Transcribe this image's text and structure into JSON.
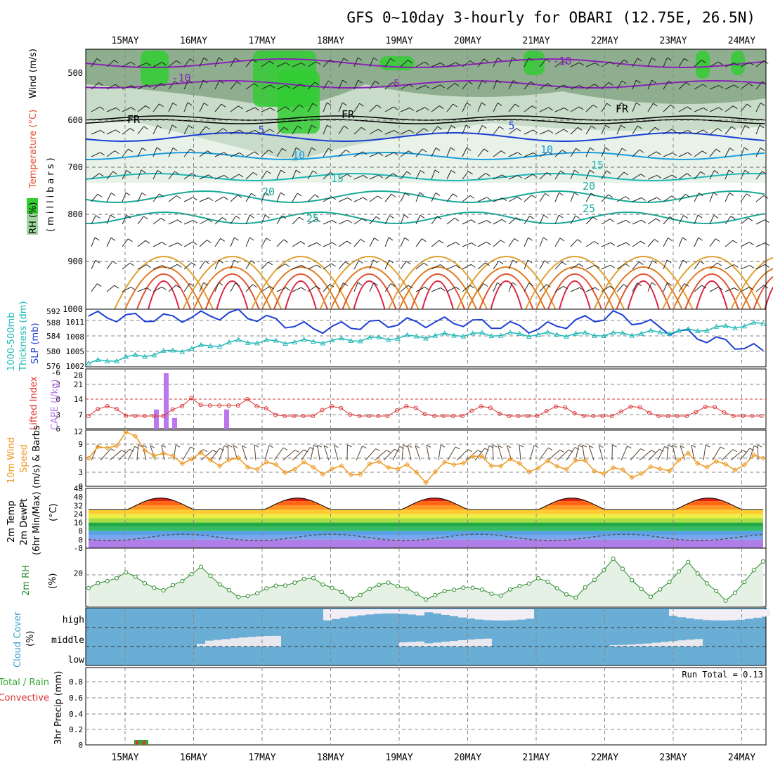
{
  "title": "GFS 0~10day 3-hourly for OBARI (12.75E, 26.5N)",
  "dates": [
    "15MAY",
    "16MAY",
    "17MAY",
    "18MAY",
    "19MAY",
    "20MAY",
    "21MAY",
    "22MAY",
    "23MAY",
    "24MAY"
  ],
  "run_total": "Run Total = 0.13",
  "colors": {
    "green_rh": "#33cc33",
    "slp_line": "#1a3fd6",
    "thickness_line": "#20b8b8",
    "lifted_index": "#dd3333",
    "cape_bar": "#bb77ee",
    "wind_speed": "#ee9922",
    "rh2m": "#2a8a2a",
    "cloud_blue": "#6aaed6"
  },
  "panels": {
    "upper": {
      "ylabel_rh": "RH (%)",
      "ylabel_temp": "Temperature (°C)",
      "ylabel_wind": "Wind (m/s)",
      "ylabel_mb": "(millibars)",
      "levels": [
        "500",
        "600",
        "700",
        "800",
        "900",
        "1000"
      ],
      "contour_labels": [
        "-10",
        "-10",
        "-5",
        "FR",
        "FR",
        "FR",
        "5",
        "5",
        "10",
        "10",
        "15",
        "15",
        "20",
        "20",
        "25",
        "25"
      ]
    },
    "slp": {
      "ylabel_a": "1000-500mb",
      "ylabel_b": "Thickness (dm)",
      "ylabel_c": "SLP (mb)",
      "left_ticks": [
        "592",
        "588",
        "584",
        "580",
        "576"
      ],
      "right_ticks": [
        "1011",
        "1008",
        "1005",
        "1002"
      ]
    },
    "cape": {
      "ylabel_a": "Lifted Index",
      "ylabel_b": "CAPE (J/kg)",
      "left_ticks": [
        "-6",
        "-3",
        "0",
        "3",
        "6"
      ],
      "right_ticks": [
        "28",
        "21",
        "14",
        "7"
      ]
    },
    "wind10m": {
      "ylabel_a": "10m Wind",
      "ylabel_b": "Speed",
      "ylabel_c": "(m/s) & Barbs",
      "ticks": [
        "12",
        "9",
        "6",
        "3",
        "0"
      ]
    },
    "temp2m": {
      "ylabel_a": "2m Temp",
      "ylabel_b": "2m DewPt",
      "ylabel_c": "(6hr Min/Max)",
      "ylabel_d": "(°C)",
      "ticks": [
        "48",
        "40",
        "32",
        "24",
        "16",
        "8",
        "0",
        "-8"
      ]
    },
    "rh2m": {
      "ylabel_a": "2m RH",
      "ylabel_b": "(%)",
      "ticks": [
        "20"
      ]
    },
    "cloud": {
      "ylabel_a": "Cloud Cover",
      "ylabel_b": "(%)",
      "rows": [
        "high",
        "middle",
        "low"
      ]
    },
    "precip": {
      "ylabel_a": "Total / Rain",
      "ylabel_b": "Convective",
      "ylabel_c": "3hr Precip (mm)",
      "ticks": [
        "0.8",
        "0.6",
        "0.4",
        "0.2",
        "0"
      ]
    }
  },
  "chart_data": [
    {
      "type": "line",
      "name_panel": "SLP and 1000-500mb thickness",
      "x": [
        "15MAY",
        "16MAY",
        "17MAY",
        "18MAY",
        "19MAY",
        "20MAY",
        "21MAY",
        "22MAY",
        "23MAY",
        "24MAY"
      ],
      "series": [
        {
          "name": "SLP (mb)",
          "values": [
            1010.8,
            1010.4,
            1011.2,
            1008.6,
            1009.6,
            1009.8,
            1008.6,
            1011.0,
            1007.6,
            1004.8
          ]
        },
        {
          "name": "1000-500mb Thickness (dm)",
          "values": [
            577,
            580,
            583,
            583,
            584,
            585,
            585,
            585,
            586,
            588
          ]
        }
      ],
      "ylim_slp": [
        1002,
        1012
      ],
      "ylim_thickness": [
        576,
        592
      ]
    },
    {
      "type": "bar",
      "name_panel": "CAPE",
      "x": [
        "15.8MAY",
        "15.9MAY",
        "16.0MAY",
        "16.9MAY"
      ],
      "values": [
        9,
        26,
        5,
        9
      ],
      "ylim": [
        0,
        28
      ]
    },
    {
      "type": "line",
      "name_panel": "10m wind speed",
      "x": [
        "15MAY",
        "15.5MAY",
        "16MAY",
        "16.5MAY",
        "17MAY",
        "17.5MAY",
        "18MAY",
        "18.5MAY",
        "19MAY",
        "19.5MAY",
        "20MAY",
        "20.5MAY",
        "21MAY",
        "21.5MAY",
        "22MAY",
        "22.5MAY",
        "23MAY",
        "23.5MAY",
        "24MAY"
      ],
      "values": [
        6,
        11,
        6,
        6,
        5,
        4,
        4,
        3,
        5,
        2,
        6,
        5,
        4,
        5,
        3,
        3,
        6,
        4,
        6
      ],
      "ylim": [
        0,
        12
      ]
    },
    {
      "type": "area",
      "name_panel": "2m RH",
      "x": [
        "15MAY",
        "15.5MAY",
        "16MAY",
        "16.5MAY",
        "17MAY",
        "17.5MAY",
        "18MAY",
        "18.5MAY",
        "19MAY",
        "19.5MAY",
        "20MAY",
        "20.5MAY",
        "21MAY",
        "21.5MAY",
        "22MAY",
        "22.5MAY",
        "23MAY",
        "23.5MAY",
        "24MAY"
      ],
      "values": [
        11,
        20,
        9,
        23,
        5,
        12,
        17,
        5,
        15,
        5,
        12,
        7,
        17,
        5,
        28,
        5,
        26,
        3,
        27
      ],
      "ylim": [
        0,
        35
      ]
    },
    {
      "type": "bar",
      "name_panel": "3hr Precip",
      "x": [
        "15.3MAY",
        "15.4MAY"
      ],
      "values": [
        0.05,
        0.05
      ],
      "ylim": [
        0,
        1
      ]
    }
  ]
}
